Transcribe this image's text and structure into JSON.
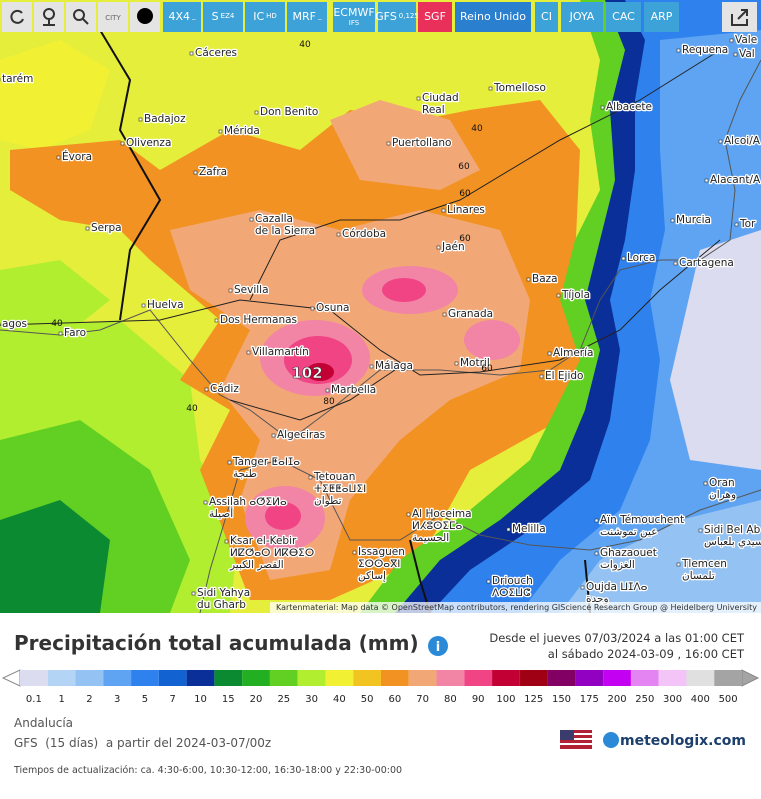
{
  "toolbar": {
    "city_tag": "CITY",
    "buttons": [
      {
        "label": "4X4",
        "sub": "_",
        "color": "#3da2d8"
      },
      {
        "label": "S",
        "sub": "EZ4",
        "color": "#3da2d8"
      },
      {
        "label": "IC",
        "sub": "HD",
        "color": "#3da2d8"
      },
      {
        "label": "MRF",
        "sub": "_",
        "color": "#3da2d8"
      },
      {
        "label": "ECMWF",
        "sub": "IFS",
        "color": "#3da2d8"
      },
      {
        "label": "GFS",
        "sub": "0,125",
        "color": "#3da2d8"
      },
      {
        "label": "SGF",
        "color": "#e8305a"
      },
      {
        "label": "Reino Unido",
        "color": "#2b7fcf"
      },
      {
        "label": "CI",
        "color": "#3da2d8"
      },
      {
        "label": "JOYA",
        "color": "#3da2d8"
      },
      {
        "label": "CAC",
        "color": "#3da2d8"
      },
      {
        "label": "ARP",
        "color": "#3da2d8"
      }
    ]
  },
  "map": {
    "cities": [
      {
        "lines": [
          "Cáceres"
        ]
      },
      {
        "lines": [
          "Requena"
        ]
      },
      {
        "lines": [
          "Vale"
        ]
      },
      {
        "lines": [
          "Val"
        ]
      },
      {
        "lines": [
          "tarém"
        ]
      },
      {
        "lines": [
          "Tomelloso"
        ]
      },
      {
        "lines": [
          "Ciudad",
          "Real"
        ]
      },
      {
        "lines": [
          "Don Benito"
        ]
      },
      {
        "lines": [
          "Badajoz"
        ]
      },
      {
        "lines": [
          "Albacete"
        ]
      },
      {
        "lines": [
          "Mérida"
        ]
      },
      {
        "lines": [
          "Olivenza"
        ]
      },
      {
        "lines": [
          "Puertollano"
        ]
      },
      {
        "lines": [
          "Évora"
        ]
      },
      {
        "lines": [
          "Alcoi/A"
        ]
      },
      {
        "lines": [
          "Zafra"
        ]
      },
      {
        "lines": [
          "Alacant/A"
        ]
      },
      {
        "lines": [
          "Linares"
        ]
      },
      {
        "lines": [
          "Murcia"
        ]
      },
      {
        "lines": [
          "Tor"
        ]
      },
      {
        "lines": [
          "Serpa"
        ]
      },
      {
        "lines": [
          "Cazalla",
          "de la Sierra"
        ]
      },
      {
        "lines": [
          "Córdoba"
        ]
      },
      {
        "lines": [
          "Jaén"
        ]
      },
      {
        "lines": [
          "Lorca"
        ]
      },
      {
        "lines": [
          "Cartagena"
        ]
      },
      {
        "lines": [
          "Baza"
        ]
      },
      {
        "lines": [
          "Sevilla"
        ]
      },
      {
        "lines": [
          "Tíjola"
        ]
      },
      {
        "lines": [
          "Huelva"
        ]
      },
      {
        "lines": [
          "Osuna"
        ]
      },
      {
        "lines": [
          "Granada"
        ]
      },
      {
        "lines": [
          "Dos Hermanas"
        ]
      },
      {
        "lines": [
          "agos"
        ]
      },
      {
        "lines": [
          "Faro"
        ]
      },
      {
        "lines": [
          "Villamartín"
        ]
      },
      {
        "lines": [
          "Almería"
        ]
      },
      {
        "lines": [
          "Motril"
        ]
      },
      {
        "lines": [
          "Málaga"
        ]
      },
      {
        "lines": [
          "El Ejido"
        ]
      },
      {
        "lines": [
          "Cádiz"
        ]
      },
      {
        "lines": [
          "Marbella"
        ]
      },
      {
        "lines": [
          "Algeciras"
        ]
      },
      {
        "lines": [
          "Tanger ⵟⴰⵏⵊⴰ",
          "طنجة"
        ]
      },
      {
        "lines": [
          "Tetouan",
          "ⵜⵉⵟⵟⴰⵡⵉⵏ",
          "تطوان"
        ]
      },
      {
        "lines": [
          "Assilah ⴰⵚⵉⵍⴰ",
          "أصيلة"
        ]
      },
      {
        "lines": [
          "Al Hoceima",
          "ⵍⵃⵓⵙⵉⵎⴰ",
          "الحسيمة"
        ]
      },
      {
        "lines": [
          "Ksar el-Kebir",
          "ⵍⵇⵚⴰⵔ ⵍⴽⴱⵉⵔ",
          "القصر الكبير"
        ]
      },
      {
        "lines": [
          "Issaguen",
          "ⵉⵙⵙⴰⴳⵏ",
          "إساكن"
        ]
      },
      {
        "lines": [
          "Sidi Yahya",
          "du Gharb"
        ]
      },
      {
        "lines": [
          "Melilla"
        ]
      },
      {
        "lines": [
          "Aïn Témouchent",
          "عين تموشنت"
        ]
      },
      {
        "lines": [
          "Sidi Bel Ab",
          "سيدي بلعباس"
        ]
      },
      {
        "lines": [
          "Oran",
          "وهران"
        ]
      },
      {
        "lines": [
          "Tlemcen",
          "تلمسان"
        ]
      },
      {
        "lines": [
          "Ghazaouet",
          "الغزوات"
        ]
      },
      {
        "lines": [
          "Driouch",
          "ⴷⵔⵉⵡⵛ"
        ]
      },
      {
        "lines": [
          "Oujda ⵡⵊⴷⴰ",
          "وجدة"
        ]
      }
    ],
    "contour_labels": [
      40,
      40,
      60,
      60,
      60,
      40,
      40,
      80,
      60
    ],
    "max_value": 102,
    "attribution": "Kartenmaterial: Map data © OpenStreetMap contributors, rendering GIScience Research Group @ Heidelberg University"
  },
  "panel": {
    "title": "Precipitación total acumulada (mm)",
    "date_from": "Desde el jueves 07/03/2024 a las 01:00 CET",
    "date_to": "al sábado 2024-03-09 , 16:00 CET",
    "legend": {
      "values": [
        0.1,
        1,
        2,
        3,
        5,
        7,
        10,
        15,
        20,
        25,
        30,
        40,
        50,
        60,
        70,
        80,
        90,
        100,
        125,
        150,
        175,
        200,
        250,
        300,
        400,
        500
      ],
      "colors": [
        "#dcdcf0",
        "#b4d4f6",
        "#94c2f2",
        "#5ea4f2",
        "#2f82ee",
        "#1262d2",
        "#0a2f98",
        "#0c8a32",
        "#22b022",
        "#62d022",
        "#b2ee30",
        "#f2f032",
        "#f2c422",
        "#f29222",
        "#f2a876",
        "#f284a6",
        "#f04484",
        "#c20034",
        "#a00014",
        "#820064",
        "#9200c2",
        "#c400f2",
        "#e484f2",
        "#f2c4f8",
        "#e0e0e0",
        "#a4a4a4"
      ]
    },
    "region": "Andalucía",
    "model_run": "GFS  (15 días)  a partir del 2024-03-07/00z",
    "update_times": "Tiempos de actualización: ca. 4:30-6:00, 10:30-12:00, 16:30-18:00 y 22:30-00:00",
    "brand": "meteologix.com"
  }
}
